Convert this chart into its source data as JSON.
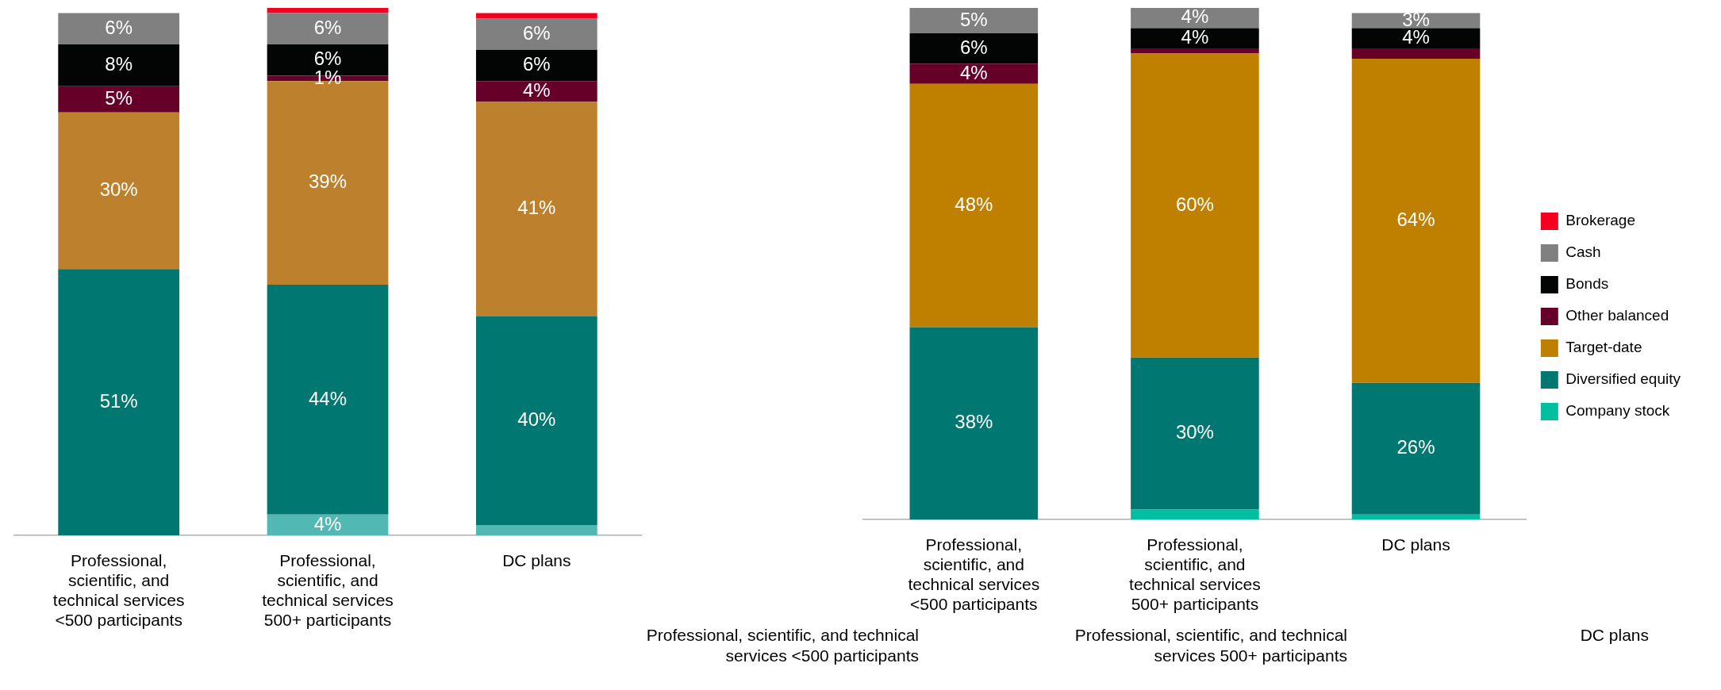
{
  "chart_data": [
    {
      "type": "bar",
      "stacked": true,
      "legend": false,
      "tick_labels": "x",
      "categories": [
        "Professional, scientific, and technical services <500 participants",
        "Professional, scientific, and technical services 500+ participants",
        "DC plans"
      ],
      "series": [
        {
          "color": "#52b8b3",
          "values": [
            0,
            4,
            2
          ],
          "value_labels": [
            null,
            "4%",
            null
          ]
        },
        {
          "color": "#007770",
          "values": [
            51,
            44,
            40
          ],
          "value_labels": [
            "51%",
            "44%",
            "40%"
          ]
        },
        {
          "color": "#bd812e",
          "values": [
            30,
            39,
            41
          ],
          "value_labels": [
            "30%",
            "39%",
            "41%"
          ]
        },
        {
          "color": "#660029",
          "values": [
            5,
            1,
            4
          ],
          "value_labels": [
            "5%",
            "1%",
            "4%"
          ]
        },
        {
          "color": "#030404",
          "values": [
            8,
            6,
            6
          ],
          "value_labels": [
            "8%",
            "6%",
            "6%"
          ]
        },
        {
          "color": "#808080",
          "values": [
            6,
            6,
            6
          ],
          "value_labels": [
            "6%",
            "6%",
            "6%"
          ]
        },
        {
          "color": "#f5001f",
          "values": [
            0,
            1,
            1
          ],
          "value_labels": [
            null,
            null,
            null
          ]
        }
      ]
    },
    {
      "type": "bar",
      "stacked": true,
      "legend": "right",
      "tick_labels": "x",
      "categories": [
        "Professional, scientific, and technical services <500 participants",
        "Professional, scientific, and technical services 500+ participants",
        "DC plans"
      ],
      "series": [
        {
          "name": "Company stock",
          "color": "#00bfa0",
          "values": [
            0,
            2,
            1
          ],
          "value_labels": [
            null,
            null,
            null
          ]
        },
        {
          "name": "Diversified equity",
          "color": "#007770",
          "values": [
            38,
            30,
            26
          ],
          "value_labels": [
            "38%",
            "30%",
            "26%"
          ]
        },
        {
          "name": "Target-date",
          "color": "#bf8000",
          "values": [
            48,
            60,
            64
          ],
          "value_labels": [
            "48%",
            "60%",
            "64%"
          ]
        },
        {
          "name": "Other balanced",
          "color": "#660029",
          "values": [
            4,
            1,
            2
          ],
          "value_labels": [
            "4%",
            null,
            null
          ]
        },
        {
          "name": "Bonds",
          "color": "#030404",
          "values": [
            6,
            4,
            4
          ],
          "value_labels": [
            "6%",
            "4%",
            "4%"
          ]
        },
        {
          "name": "Cash",
          "color": "#808080",
          "values": [
            5,
            4,
            3
          ],
          "value_labels": [
            "5%",
            "4%",
            "3%"
          ]
        },
        {
          "name": "Brokerage",
          "color": "#f5001f",
          "values": [
            0,
            0,
            0
          ],
          "value_labels": [
            null,
            null,
            null
          ]
        }
      ],
      "annotations": [
        "Professional, scientific, and technical services <500 participants",
        "Professional, scientific, and technical services 500+ participants",
        "DC plans"
      ]
    }
  ]
}
